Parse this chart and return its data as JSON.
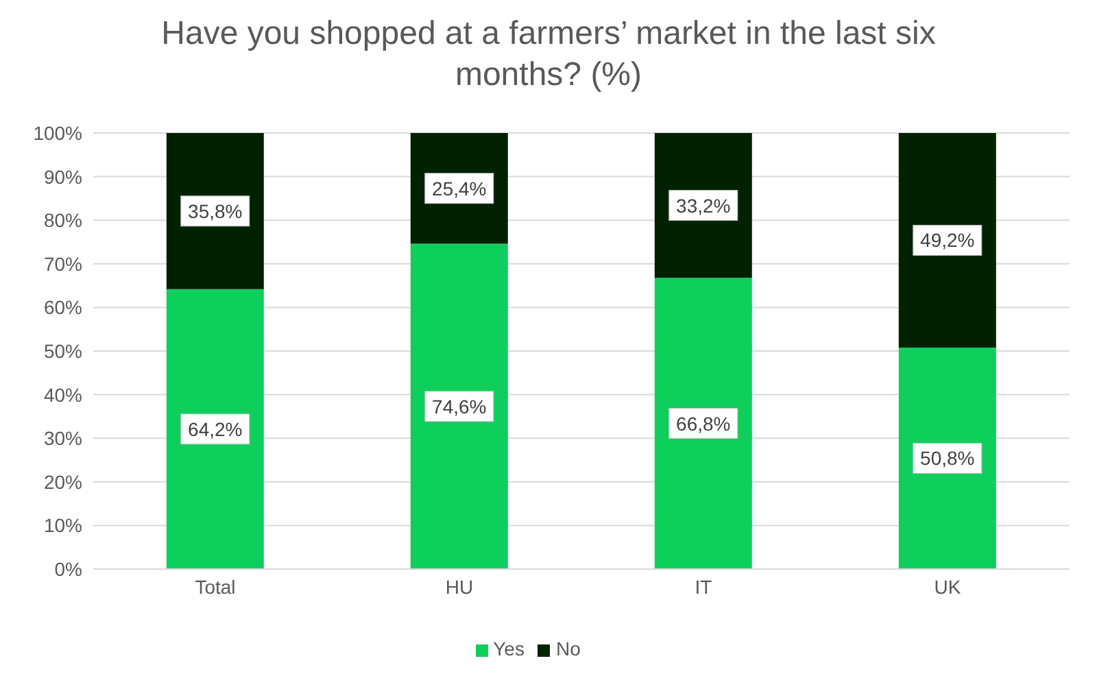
{
  "chart_data": {
    "type": "bar",
    "title": "Have you shopped at a farmers’ market in the last six months? (%)",
    "categories": [
      "Total",
      "HU",
      "IT",
      "UK"
    ],
    "stacked": true,
    "series": [
      {
        "name": "Yes",
        "color": "#0fcf5c",
        "values": [
          64.2,
          74.6,
          66.8,
          50.8
        ],
        "value_labels": [
          "64,2%",
          "74,6%",
          "66,8%",
          "50,8%"
        ]
      },
      {
        "name": "No",
        "color": "#002200",
        "values": [
          35.8,
          25.4,
          33.2,
          49.2
        ],
        "value_labels": [
          "35,8%",
          "25,4%",
          "33,2%",
          "49,2%"
        ]
      }
    ],
    "ylim": [
      0,
      100
    ],
    "yticks": [
      {
        "value": 0,
        "label": "0%"
      },
      {
        "value": 10,
        "label": "10%"
      },
      {
        "value": 20,
        "label": "20%"
      },
      {
        "value": 30,
        "label": "30%"
      },
      {
        "value": 40,
        "label": "40%"
      },
      {
        "value": 50,
        "label": "50%"
      },
      {
        "value": 60,
        "label": "60%"
      },
      {
        "value": 70,
        "label": "70%"
      },
      {
        "value": 80,
        "label": "80%"
      },
      {
        "value": 90,
        "label": "90%"
      },
      {
        "value": 100,
        "label": "100%"
      }
    ],
    "grid": "y",
    "legend": "bottom"
  }
}
